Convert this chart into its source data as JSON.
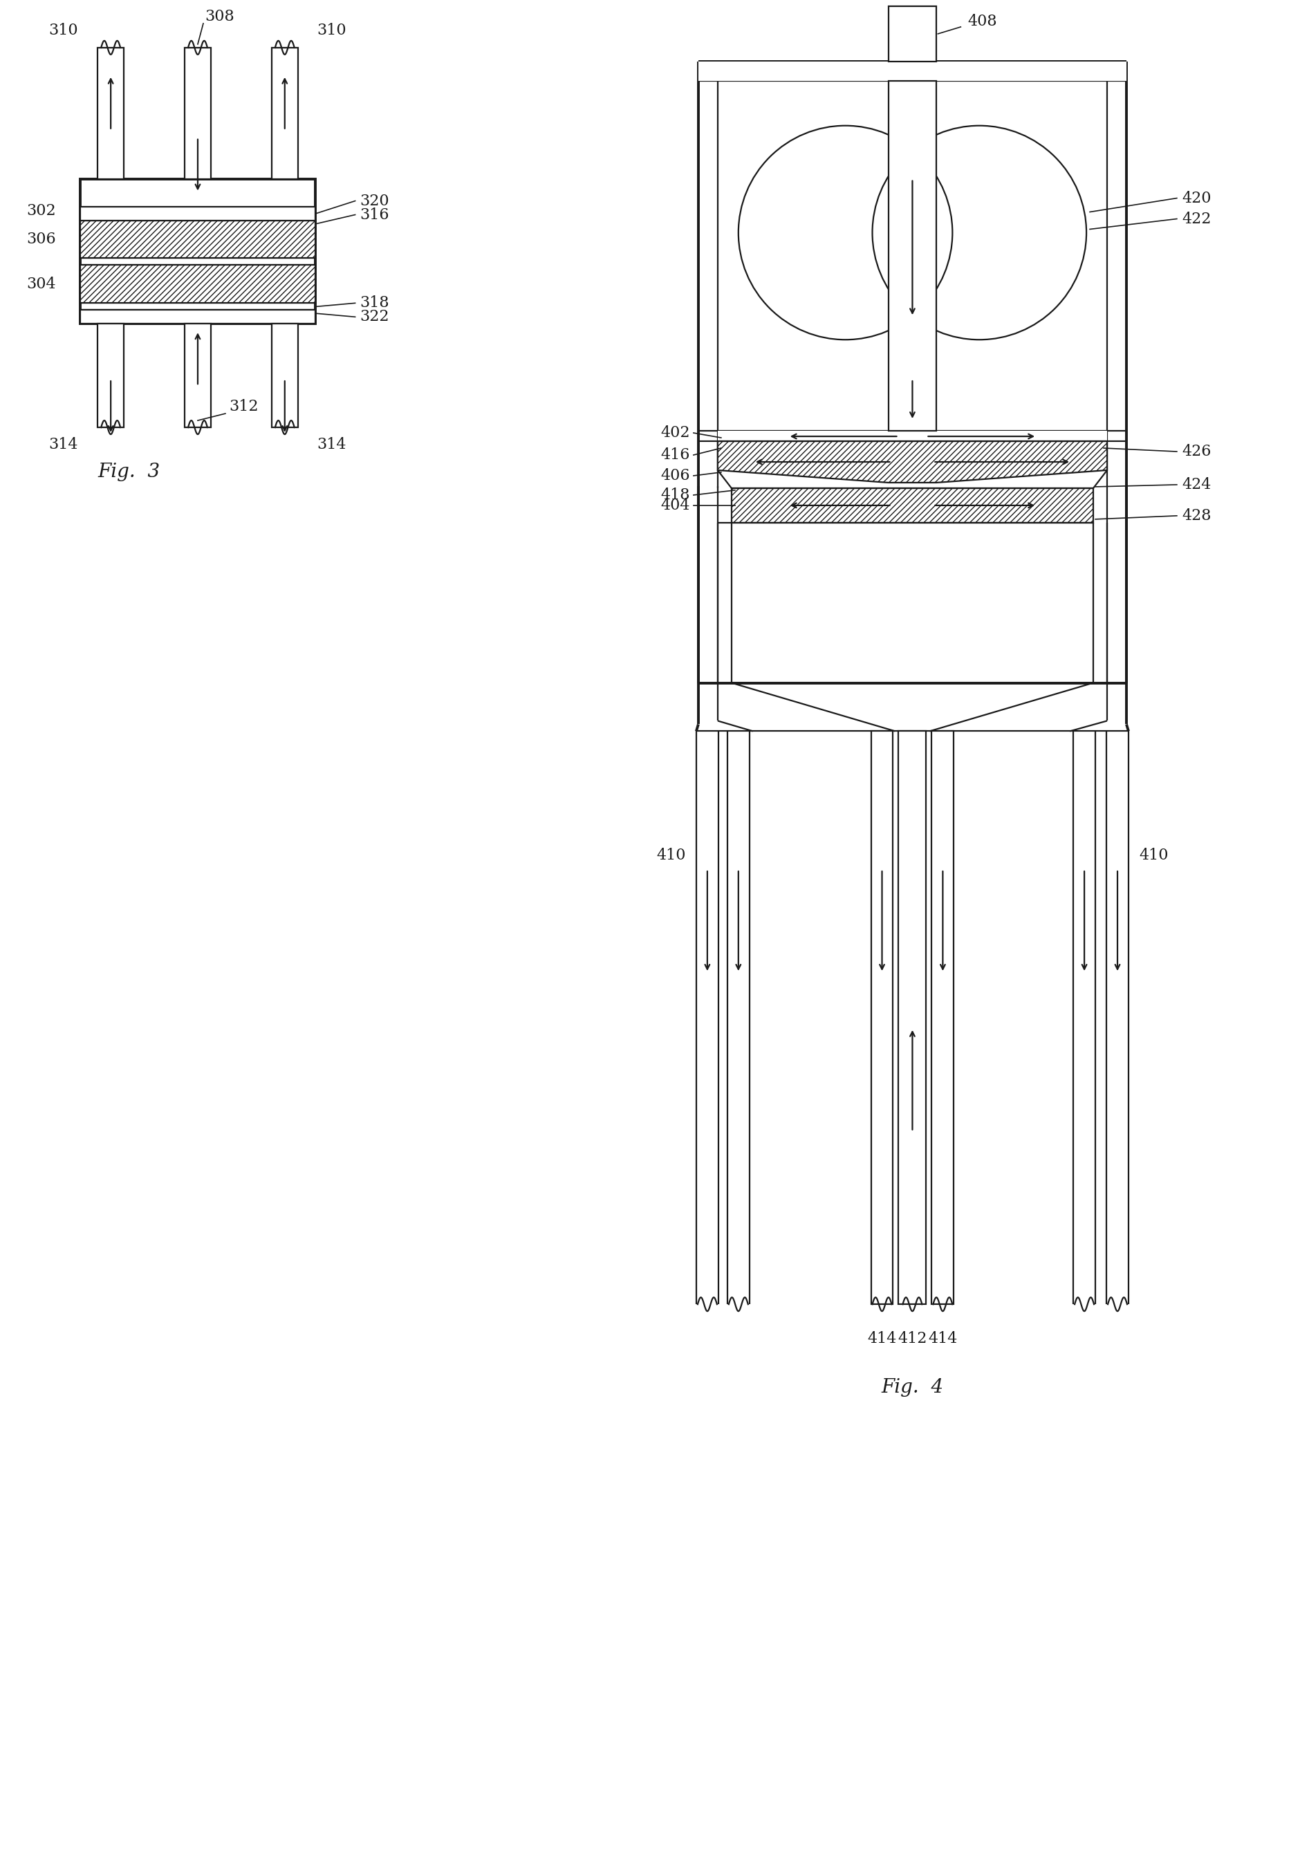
{
  "fig_width": 18.93,
  "fig_height": 26.87,
  "bg_color": "#ffffff",
  "line_color": "#1a1a1a",
  "font_size_label": 16,
  "font_size_fig": 20,
  "fig3_label": "Fig.  3",
  "fig4_label": "Fig.  4"
}
